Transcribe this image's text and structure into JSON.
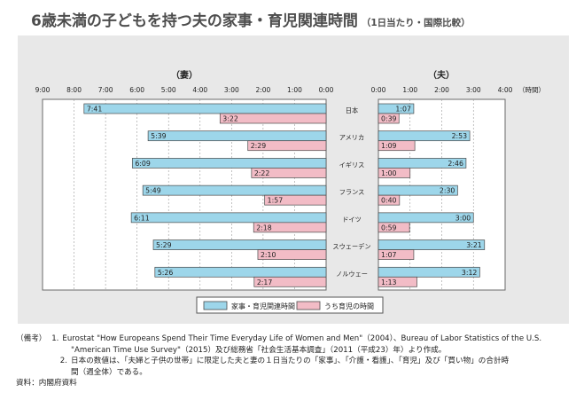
{
  "title": "6歳未満の子どもを持つ夫の家事・育児関連時間",
  "subtitle": "（1日当たり・国際比較）",
  "chart_data": {
    "type": "bar",
    "orientation": "horizontal",
    "panels": {
      "wife": {
        "label": "（妻）",
        "ticks": [
          "9:00",
          "8:00",
          "7:00",
          "6:00",
          "5:00",
          "4:00",
          "3:00",
          "2:00",
          "1:00",
          "0:00"
        ],
        "xlim_minutes": [
          0,
          540
        ],
        "direction": "right-to-left"
      },
      "husband": {
        "label": "（夫）",
        "ticks": [
          "0:00",
          "1:00",
          "2:00",
          "3:00",
          "4:00"
        ],
        "unit_label": "（時間）",
        "xlim_minutes": [
          0,
          240
        ],
        "direction": "left-to-right"
      }
    },
    "categories": [
      "日本",
      "アメリカ",
      "イギリス",
      "フランス",
      "ドイツ",
      "スウェーデン",
      "ノルウェー"
    ],
    "series": [
      {
        "name": "家事・育児関連時間",
        "color": "#9dd6ea",
        "wife": [
          "7:41",
          "5:39",
          "6:09",
          "5:49",
          "6:11",
          "5:29",
          "5:26"
        ],
        "husband": [
          "1:07",
          "2:53",
          "2:46",
          "2:30",
          "3:00",
          "3:21",
          "3:12"
        ]
      },
      {
        "name": "うち育児の時間",
        "color": "#f2bcc6",
        "wife": [
          "3:22",
          "2:29",
          "2:22",
          "1:57",
          "2:18",
          "2:10",
          "2:17"
        ],
        "husband": [
          "0:39",
          "1:09",
          "1:00",
          "0:40",
          "0:59",
          "1:07",
          "1:13"
        ]
      }
    ]
  },
  "notes": {
    "label": "（備考）",
    "items": [
      {
        "num": "1.",
        "line1": "Eurostat \"How Europeans Spend Their Time Everyday Life of Women and Men\"（2004）、Bureau of Labor Statistics of the U.S.",
        "line2": "\"American Time Use Survey\"（2015）及び総務省「社会生活基本調査」（2011（平成23）年）より作成。"
      },
      {
        "num": "2.",
        "line1": "日本の数値は、「夫婦と子供の世帯」に限定した夫と妻の１日当たりの「家事」、「介護・看護」、「育児」及び「買い物」の合計時",
        "line2": "間（週全体）である。"
      }
    ],
    "source": "資料：内閣府資料"
  }
}
